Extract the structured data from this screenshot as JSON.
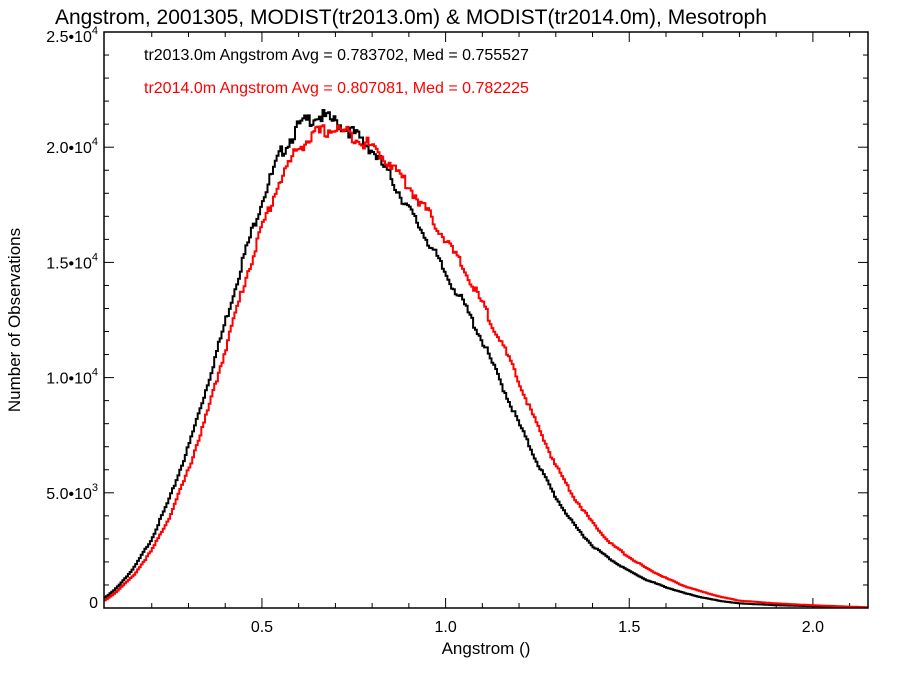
{
  "chart_data": {
    "type": "line",
    "title": "Angstrom, 2001305, MODIST(tr2013.0m) & MODIST(tr2014.0m), Mesotroph",
    "xlabel": "Angstrom ()",
    "ylabel": "Number of Observations",
    "xlim": [
      0.07,
      2.15
    ],
    "ylim": [
      0,
      25000
    ],
    "x_ticks": [
      {
        "value": 0.5,
        "label": "0.5"
      },
      {
        "value": 1.0,
        "label": "1.0"
      },
      {
        "value": 1.5,
        "label": "1.5"
      },
      {
        "value": 2.0,
        "label": "2.0"
      }
    ],
    "y_ticks": [
      {
        "value": 0,
        "mantissa": "0",
        "exponent": ""
      },
      {
        "value": 5000,
        "mantissa": "5.0•10",
        "exponent": "3"
      },
      {
        "value": 10000,
        "mantissa": "1.0•10",
        "exponent": "4"
      },
      {
        "value": 15000,
        "mantissa": "1.5•10",
        "exponent": "4"
      },
      {
        "value": 20000,
        "mantissa": "2.0•10",
        "exponent": "4"
      },
      {
        "value": 25000,
        "mantissa": "2.5•10",
        "exponent": "4"
      }
    ],
    "annotations": [
      {
        "text": "tr2013.0m Angstrom Avg = 0.783702, Med = 0.755527",
        "color": "#000000"
      },
      {
        "text": "tr2014.0m Angstrom Avg = 0.807081, Med = 0.782225",
        "color": "#ff0000"
      }
    ],
    "series": [
      {
        "color": "#000000",
        "x": [
          0.07,
          0.1,
          0.15,
          0.2,
          0.25,
          0.3,
          0.35,
          0.4,
          0.45,
          0.5,
          0.55,
          0.6,
          0.65,
          0.7,
          0.75,
          0.8,
          0.85,
          0.9,
          0.95,
          1.0,
          1.05,
          1.1,
          1.15,
          1.2,
          1.25,
          1.3,
          1.35,
          1.4,
          1.45,
          1.5,
          1.55,
          1.6,
          1.65,
          1.7,
          1.75,
          1.8,
          1.9,
          2.0,
          2.1,
          2.15
        ],
        "y": [
          400,
          800,
          1700,
          3000,
          4800,
          7000,
          9600,
          12400,
          15200,
          17700,
          19700,
          20900,
          21400,
          21100,
          20600,
          19900,
          18700,
          17300,
          16000,
          14500,
          13200,
          11600,
          9800,
          8000,
          6300,
          4800,
          3600,
          2700,
          2100,
          1600,
          1200,
          900,
          650,
          450,
          300,
          200,
          120,
          80,
          40,
          20
        ]
      },
      {
        "color": "#ff0000",
        "x": [
          0.07,
          0.1,
          0.15,
          0.2,
          0.25,
          0.3,
          0.35,
          0.4,
          0.45,
          0.5,
          0.55,
          0.6,
          0.65,
          0.7,
          0.75,
          0.8,
          0.85,
          0.9,
          0.95,
          1.0,
          1.05,
          1.1,
          1.15,
          1.2,
          1.25,
          1.3,
          1.35,
          1.4,
          1.45,
          1.5,
          1.55,
          1.6,
          1.65,
          1.7,
          1.75,
          1.8,
          1.9,
          2.0,
          2.1,
          2.15
        ],
        "y": [
          300,
          650,
          1400,
          2500,
          4000,
          6000,
          8400,
          11200,
          14000,
          16500,
          18600,
          20000,
          20600,
          20800,
          20500,
          20000,
          19300,
          18300,
          17200,
          16000,
          14700,
          13200,
          11600,
          9800,
          7900,
          6200,
          4800,
          3700,
          2800,
          2200,
          1700,
          1300,
          950,
          700,
          480,
          320,
          200,
          120,
          60,
          30
        ]
      }
    ]
  }
}
